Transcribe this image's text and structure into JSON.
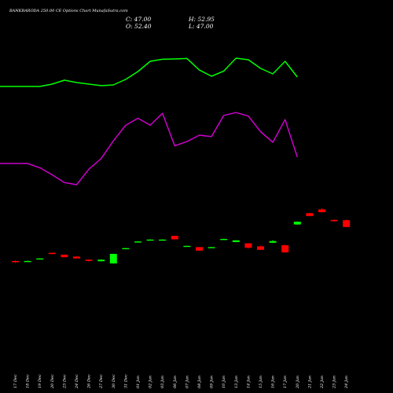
{
  "header": {
    "title": "BANKBARODA 250.00  CE Options  Chart MunafaSutra.com",
    "close_label": "C: 47.00",
    "open_label": "O: 52.40",
    "high_label": "H: 52.95",
    "low_label": "L: 47.00"
  },
  "chart_data": {
    "type": "candlestick",
    "title": "BANKBARODA 250.00  CE Options  Chart MunafaSutra.com",
    "xlabel": "",
    "ylabel": "",
    "grid": false,
    "background": "#000000",
    "colors": {
      "up": "#00ff00",
      "down": "#ff0000",
      "ma_short": "#00ff00",
      "ma_long": "#cc00cc"
    },
    "categories": [
      "17 Dec",
      "18 Dec",
      "19 Dec",
      "20 Dec",
      "23 Dec",
      "24 Dec",
      "26 Dec",
      "27 Dec",
      "30 Dec",
      "31 Dec",
      "01 Jan",
      "02 Jan",
      "03 Jan",
      "06 Jan",
      "07 Jan",
      "08 Jan",
      "09 Jan",
      "10 Jan",
      "13 Jan",
      "14 Jan",
      "15 Jan",
      "16 Jan",
      "17 Jan",
      "20 Jan",
      "21 Jan",
      "22 Jan",
      "23 Jan",
      "24 Jan"
    ],
    "candles": [
      {
        "date": "17 Dec",
        "open": 20.0,
        "high": 20.5,
        "low": 18.5,
        "close": 19.0
      },
      {
        "date": "18 Dec",
        "open": 20.0,
        "high": 20.3,
        "low": 19.7,
        "close": 20.0
      },
      {
        "date": "19 Dec",
        "open": 22.0,
        "high": 22.2,
        "low": 21.8,
        "close": 22.0
      },
      {
        "date": "20 Dec",
        "open": 26.5,
        "high": 26.6,
        "low": 25.3,
        "close": 25.5
      },
      {
        "date": "23 Dec",
        "open": 25.0,
        "high": 25.1,
        "low": 23.0,
        "close": 23.0
      },
      {
        "date": "24 Dec",
        "open": 23.5,
        "high": 23.6,
        "low": 22.0,
        "close": 22.0
      },
      {
        "date": "26 Dec",
        "open": 21.0,
        "high": 21.2,
        "low": 19.5,
        "close": 20.0
      },
      {
        "date": "27 Dec",
        "open": 19.8,
        "high": 21.2,
        "low": 19.6,
        "close": 21.0
      },
      {
        "date": "30 Dec",
        "open": 18.0,
        "high": 25.8,
        "low": 17.9,
        "close": 25.6
      },
      {
        "date": "31 Dec",
        "open": 30.2,
        "high": 30.4,
        "low": 30.0,
        "close": 30.2
      },
      {
        "date": "01 Jan",
        "open": 34.8,
        "high": 35.7,
        "low": 34.6,
        "close": 35.5
      },
      {
        "date": "02 Jan",
        "open": 37.0,
        "high": 37.2,
        "low": 36.8,
        "close": 37.0
      },
      {
        "date": "03 Jan",
        "open": 37.0,
        "high": 37.2,
        "low": 36.8,
        "close": 37.0
      },
      {
        "date": "06 Jan",
        "open": 40.0,
        "high": 40.1,
        "low": 37.0,
        "close": 37.2
      },
      {
        "date": "07 Jan",
        "open": 32.0,
        "high": 32.2,
        "low": 31.8,
        "close": 32.0
      },
      {
        "date": "08 Jan",
        "open": 31.0,
        "high": 31.1,
        "low": 28.0,
        "close": 28.2
      },
      {
        "date": "09 Jan",
        "open": 31.0,
        "high": 31.2,
        "low": 30.8,
        "close": 31.0
      },
      {
        "date": "10 Jan",
        "open": 37.5,
        "high": 37.7,
        "low": 37.3,
        "close": 37.5
      },
      {
        "date": "13 Jan",
        "open": 35.0,
        "high": 36.5,
        "low": 34.9,
        "close": 36.4
      },
      {
        "date": "14 Jan",
        "open": 34.0,
        "high": 34.2,
        "low": 29.8,
        "close": 30.5
      },
      {
        "date": "15 Jan",
        "open": 31.6,
        "high": 32.0,
        "low": 28.8,
        "close": 28.9
      },
      {
        "date": "16 Jan",
        "open": 34.5,
        "high": 36.5,
        "low": 34.2,
        "close": 35.8
      },
      {
        "date": "17 Jan",
        "open": 32.5,
        "high": 33.0,
        "low": 26.6,
        "close": 26.8
      },
      {
        "date": "20 Jan",
        "open": 49.0,
        "high": 51.5,
        "low": 48.8,
        "close": 51.2
      },
      {
        "date": "21 Jan",
        "open": 58.0,
        "high": 58.4,
        "low": 55.5,
        "close": 55.7
      },
      {
        "date": "22 Jan",
        "open": 61.0,
        "high": 62.0,
        "low": 58.5,
        "close": 58.8
      },
      {
        "date": "23 Jan",
        "open": 52.6,
        "high": 53.0,
        "low": 51.3,
        "close": 51.6
      },
      {
        "date": "24 Jan",
        "open": 52.4,
        "high": 52.95,
        "low": 47.0,
        "close": 47.0
      }
    ],
    "candles_shown": 21,
    "ma_short": [
      {
        "date": "17 Dec",
        "value": 88.0
      },
      {
        "date": "19 Dec",
        "value": 88.0
      },
      {
        "date": "20 Dec",
        "value": 89.5
      },
      {
        "date": "23 Dec",
        "value": 92.0
      },
      {
        "date": "24 Dec",
        "value": 90.5
      },
      {
        "date": "27 Dec",
        "value": 88.5
      },
      {
        "date": "30 Dec",
        "value": 89.0
      },
      {
        "date": "31 Dec",
        "value": 92.5
      },
      {
        "date": "01 Jan",
        "value": 97.5
      },
      {
        "date": "02 Jan",
        "value": 104.0
      },
      {
        "date": "03 Jan",
        "value": 105.3
      },
      {
        "date": "06 Jan",
        "value": 105.5
      },
      {
        "date": "07 Jan",
        "value": 105.8
      },
      {
        "date": "08 Jan",
        "value": 98.5
      },
      {
        "date": "09 Jan",
        "value": 94.5
      },
      {
        "date": "10 Jan",
        "value": 97.8
      },
      {
        "date": "13 Jan",
        "value": 106.0
      },
      {
        "date": "14 Jan",
        "value": 105.0
      },
      {
        "date": "15 Jan",
        "value": 99.5
      },
      {
        "date": "16 Jan",
        "value": 96.0
      },
      {
        "date": "17 Jan",
        "value": 104.0
      },
      {
        "date": "20 Jan",
        "value": 94.0
      }
    ],
    "ma_long": [
      {
        "date": "17 Dec",
        "value": 40.0
      },
      {
        "date": "18 Dec",
        "value": 40.0
      },
      {
        "date": "19 Dec",
        "value": 37.0
      },
      {
        "date": "20 Dec",
        "value": 32.0
      },
      {
        "date": "23 Dec",
        "value": 26.5
      },
      {
        "date": "24 Dec",
        "value": 25.0
      },
      {
        "date": "26 Dec",
        "value": 36.0
      },
      {
        "date": "27 Dec",
        "value": 43.5
      },
      {
        "date": "30 Dec",
        "value": 56.0
      },
      {
        "date": "31 Dec",
        "value": 67.0
      },
      {
        "date": "01 Jan",
        "value": 72.0
      },
      {
        "date": "02 Jan",
        "value": 67.0
      },
      {
        "date": "03 Jan",
        "value": 75.5
      },
      {
        "date": "06 Jan",
        "value": 52.5
      },
      {
        "date": "07 Jan",
        "value": 55.5
      },
      {
        "date": "08 Jan",
        "value": 60.0
      },
      {
        "date": "09 Jan",
        "value": 59.0
      },
      {
        "date": "10 Jan",
        "value": 74.0
      },
      {
        "date": "13 Jan",
        "value": 76.0
      },
      {
        "date": "14 Jan",
        "value": 73.5
      },
      {
        "date": "15 Jan",
        "value": 62.5
      },
      {
        "date": "16 Jan",
        "value": 55.0
      },
      {
        "date": "17 Jan",
        "value": 71.0
      },
      {
        "date": "20 Jan",
        "value": 44.5
      }
    ]
  }
}
